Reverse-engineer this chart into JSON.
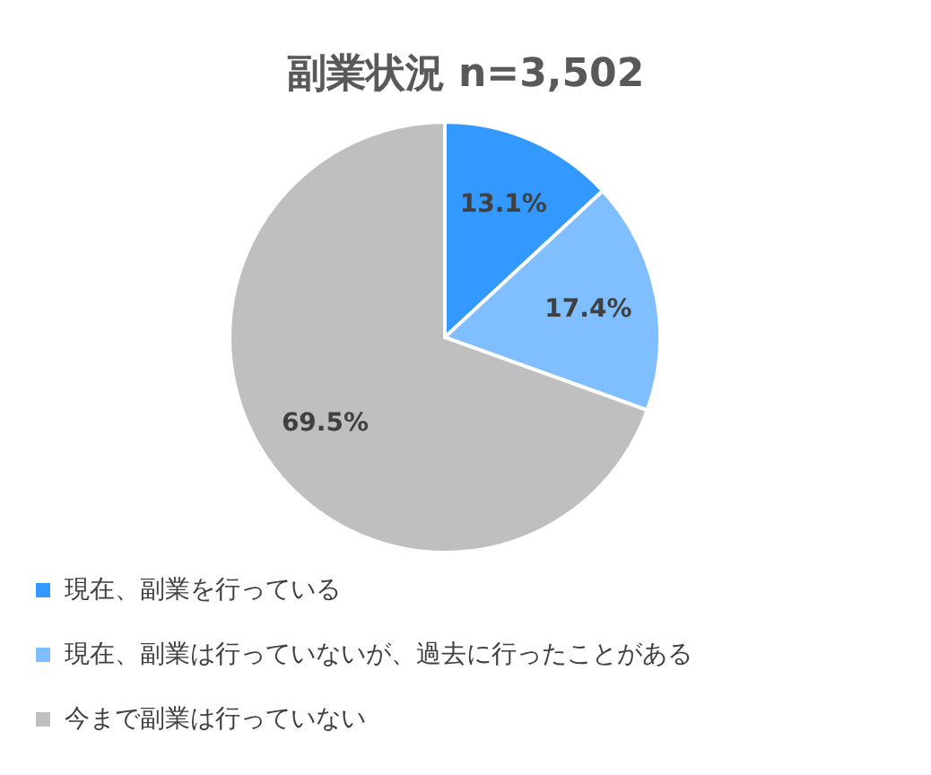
{
  "chart_data": {
    "type": "pie",
    "title": "副業状況 n=3,502",
    "categories": [
      "現在、副業を行っている",
      "現在、副業は行っていないが、過去に行ったことがある",
      "今まで副業は行っていない"
    ],
    "values": [
      13.1,
      17.4,
      69.5
    ],
    "colors": [
      "#3399ff",
      "#80bfff",
      "#bfbfbf"
    ],
    "value_labels": [
      "13.1%",
      "17.4%",
      "69.5%"
    ],
    "legend": "bottom"
  }
}
